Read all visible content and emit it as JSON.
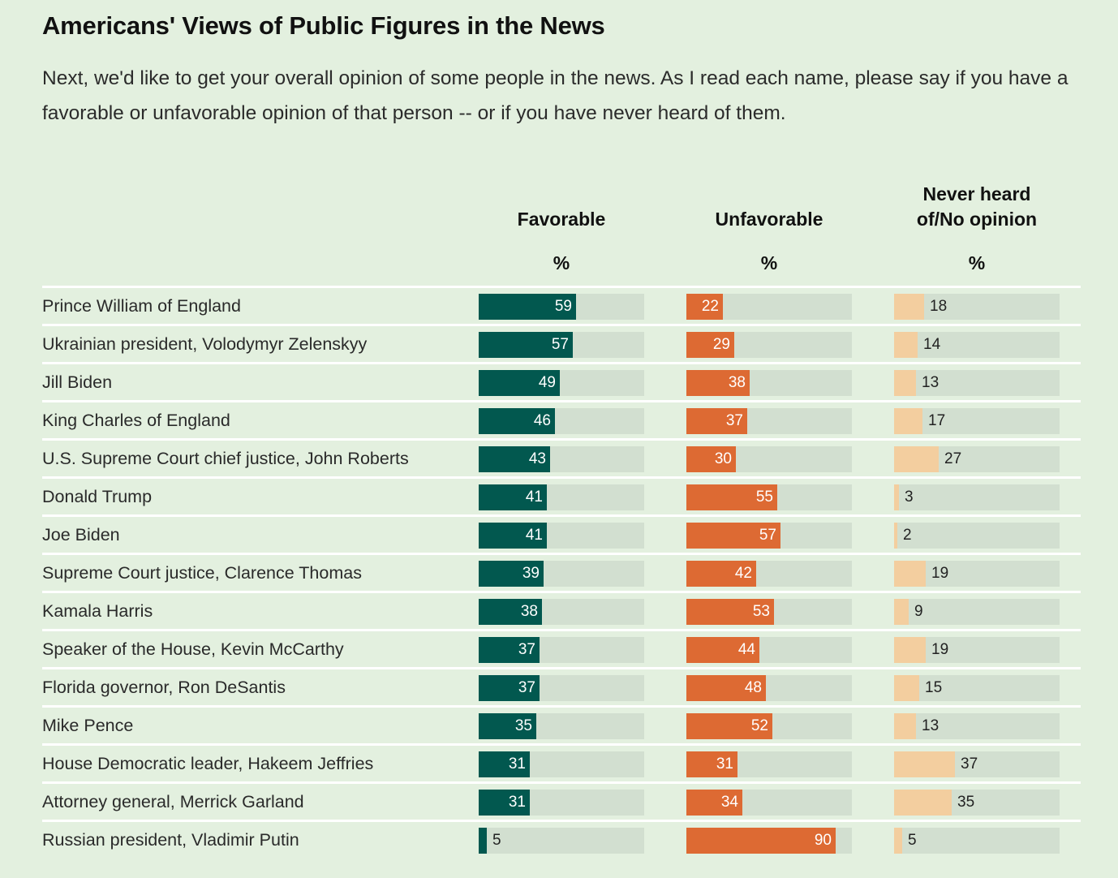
{
  "header": {
    "title": "Americans' Views of Public Figures in the News",
    "subtitle": "Next, we'd like to get your overall opinion of some people in the news. As I read each name, please say if you have a favorable or unfavorable opinion of that person -- or if you have never heard of them."
  },
  "columns": [
    {
      "line1": "",
      "line2": "Favorable",
      "unit": "%"
    },
    {
      "line1": "",
      "line2": "Unfavorable",
      "unit": "%"
    },
    {
      "line1": "Never heard",
      "line2": "of/No opinion",
      "unit": "%"
    }
  ],
  "colors": {
    "favorable": "#02584f",
    "unfavorable": "#dd6a33",
    "no_opinion": "#f3ce9f",
    "track": "#d2dfd0",
    "background": "#e3f0df"
  },
  "chart_data": {
    "type": "bar",
    "orientation": "horizontal",
    "xlim": [
      0,
      100
    ],
    "categories": [
      "Prince William of England",
      "Ukrainian president, Volodymyr Zelenskyy",
      "Jill Biden",
      "King Charles of England",
      "U.S. Supreme Court chief justice, John Roberts",
      "Donald Trump",
      "Joe Biden",
      "Supreme Court justice, Clarence Thomas",
      "Kamala Harris",
      "Speaker of the House, Kevin McCarthy",
      "Florida governor, Ron DeSantis",
      "Mike Pence",
      "House Democratic leader, Hakeem Jeffries",
      "Attorney general, Merrick Garland",
      "Russian president, Vladimir Putin"
    ],
    "series": [
      {
        "name": "Favorable",
        "values": [
          59,
          57,
          49,
          46,
          43,
          41,
          41,
          39,
          38,
          37,
          37,
          35,
          31,
          31,
          5
        ]
      },
      {
        "name": "Unfavorable",
        "values": [
          22,
          29,
          38,
          37,
          30,
          55,
          57,
          42,
          53,
          44,
          48,
          52,
          31,
          34,
          90
        ]
      },
      {
        "name": "Never heard of/No opinion",
        "values": [
          18,
          14,
          13,
          17,
          27,
          3,
          2,
          19,
          9,
          19,
          15,
          13,
          37,
          35,
          5
        ]
      }
    ]
  }
}
